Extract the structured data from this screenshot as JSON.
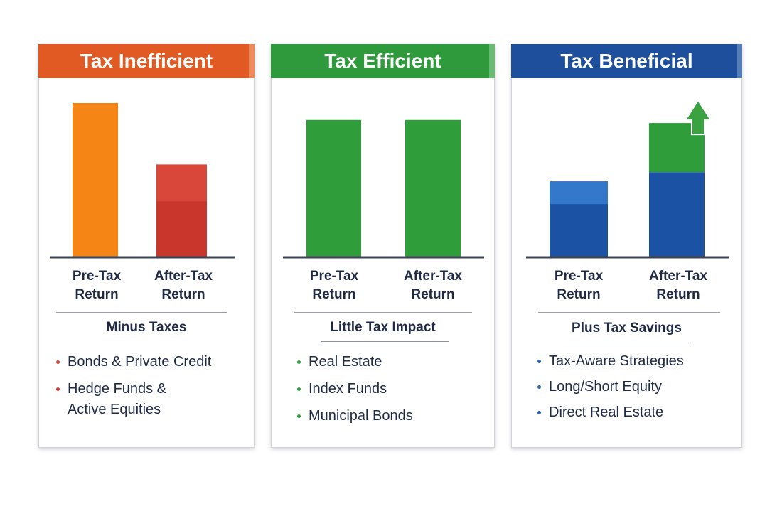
{
  "colors": {
    "inefficient_header": "#e25a23",
    "efficient_header": "#2e9a3c",
    "beneficial_header": "#1d4f9c",
    "orange_bar": "#f58514",
    "red_bar": "#c8362c",
    "green_bar": "#2f9e3a",
    "blue_bar": "#1c52a3",
    "arrow_green": "#3aa241",
    "axis": "#3c4350",
    "red_dot": "#d43a2f",
    "green_dot": "#2f9e3a",
    "blue_dot": "#2a63b3"
  },
  "panels": [
    {
      "title": "Tax Inefficient",
      "section_title": "Minus Taxes",
      "bullets": [
        "Bonds & Private Credit",
        "Hedge Funds & Active Equities"
      ],
      "categories": [
        {
          "line1": "Pre-Tax",
          "line2": "Return"
        },
        {
          "line1": "After-Tax",
          "line2": "Return"
        }
      ]
    },
    {
      "title": "Tax Efficient",
      "section_title": "Little Tax Impact",
      "bullets": [
        "Real Estate",
        "Index Funds",
        "Municipal Bonds"
      ],
      "categories": [
        {
          "line1": "Pre-Tax",
          "line2": "Return"
        },
        {
          "line1": "After-Tax",
          "line2": "Return"
        }
      ]
    },
    {
      "title": "Tax Beneficial",
      "section_title": "Plus Tax Savings",
      "bullets": [
        "Tax-Aware Strategies",
        "Long/Short Equity",
        "Direct Real Estate"
      ],
      "categories": [
        {
          "line1": "Pre-Tax",
          "line2": "Return"
        },
        {
          "line1": "After-Tax",
          "line2": "Return"
        }
      ]
    }
  ],
  "chart_data": [
    {
      "type": "bar",
      "title": "Tax Inefficient",
      "categories": [
        "Pre-Tax Return",
        "After-Tax Return"
      ],
      "values": [
        100,
        60
      ],
      "ylim": [
        0,
        100
      ]
    },
    {
      "type": "bar",
      "title": "Tax Efficient",
      "categories": [
        "Pre-Tax Return",
        "After-Tax Return"
      ],
      "values": [
        89,
        89
      ],
      "ylim": [
        0,
        100
      ]
    },
    {
      "type": "bar",
      "title": "Tax Beneficial",
      "categories": [
        "Pre-Tax Return",
        "After-Tax Return"
      ],
      "stacked": true,
      "series": [
        {
          "values": [
            49,
            55
          ]
        },
        {
          "values": [
            0,
            32
          ]
        }
      ],
      "ylim": [
        0,
        100
      ]
    }
  ]
}
